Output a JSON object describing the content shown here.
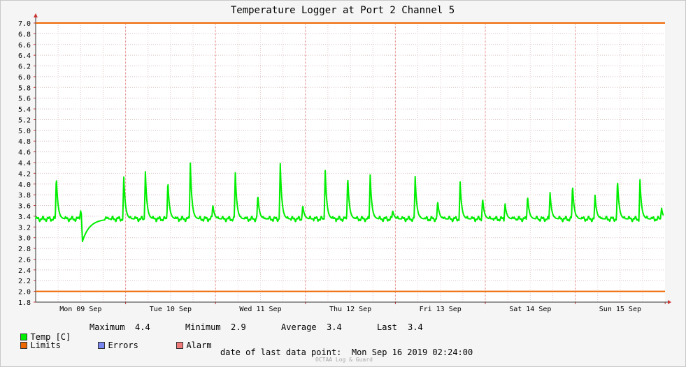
{
  "chart_data": {
    "type": "line",
    "title": "Temperature Logger at Port 2 Channel 5",
    "ylim": [
      1.8,
      7.0
    ],
    "yticks": [
      "7.0",
      "6.8",
      "6.6",
      "6.4",
      "6.2",
      "6.0",
      "5.8",
      "5.6",
      "5.4",
      "5.2",
      "5.0",
      "4.8",
      "4.6",
      "4.4",
      "4.2",
      "4.0",
      "3.8",
      "3.6",
      "3.4",
      "3.2",
      "3.0",
      "2.8",
      "2.6",
      "2.4",
      "2.2",
      "2.0",
      "1.8"
    ],
    "xticks": [
      "Mon 09 Sep",
      "Tue 10 Sep",
      "Wed 11 Sep",
      "Thu 12 Sep",
      "Fri 13 Sep",
      "Sat 14 Sep",
      "Sun 15 Sep"
    ],
    "xrange_days": [
      0,
      7.0
    ],
    "limits": [
      2.0,
      7.0
    ],
    "baseline": 3.35,
    "series": [
      {
        "name": "Temp [C]",
        "color": "#00ee00",
        "spikes": [
          [
            0.23,
            4.14
          ],
          [
            0.5,
            3.5
          ],
          [
            0.72,
            3.4
          ],
          [
            0.98,
            4.13
          ],
          [
            1.22,
            4.23
          ],
          [
            1.47,
            4.06
          ],
          [
            1.72,
            4.39
          ],
          [
            1.97,
            3.62
          ],
          [
            2.22,
            4.21
          ],
          [
            2.47,
            3.8
          ],
          [
            2.72,
            4.38
          ],
          [
            2.97,
            3.61
          ],
          [
            3.22,
            4.25
          ],
          [
            3.47,
            4.15
          ],
          [
            3.72,
            4.17
          ],
          [
            3.97,
            3.51
          ],
          [
            4.22,
            4.14
          ],
          [
            4.47,
            3.69
          ],
          [
            4.72,
            4.04
          ],
          [
            4.97,
            3.74
          ],
          [
            5.22,
            3.63
          ],
          [
            5.47,
            3.78
          ],
          [
            5.72,
            3.84
          ],
          [
            5.97,
            3.99
          ],
          [
            6.22,
            3.79
          ],
          [
            6.47,
            4.09
          ],
          [
            6.72,
            4.08
          ],
          [
            6.96,
            3.55
          ]
        ],
        "dip": {
          "day": 0.52,
          "value": 2.93
        }
      }
    ],
    "limit_color": "#ee6600",
    "grid": true
  },
  "legend": {
    "temp_label": "Temp [C]",
    "limits_label": "Limits",
    "errors_label": "Errors",
    "alarm_label": "Alarm",
    "temp_color": "#00ee00",
    "limits_color": "#ee6600",
    "errors_color": "#7a86f0",
    "alarm_color": "#f07a7a"
  },
  "stats": {
    "maximum_label": "Maximum",
    "maximum": "4.4",
    "minimum_label": "Minimum",
    "minimum": "2.9",
    "average_label": "Average",
    "average": "3.4",
    "last_label": "Last",
    "last": "3.4"
  },
  "footer": {
    "date_text": "date of last data point:  Mon Sep 16 2019 02:24:00",
    "watermark": "OCTAA Log & Guard"
  }
}
